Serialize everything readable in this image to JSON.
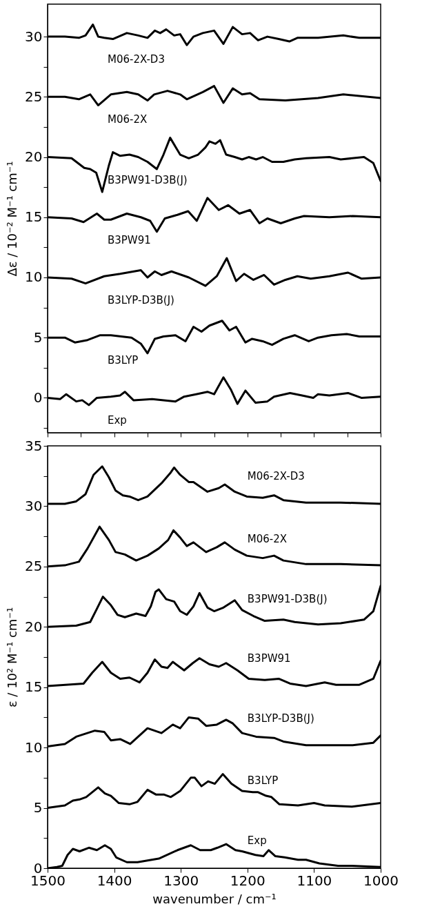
{
  "chart_data": [
    {
      "type": "line",
      "ylabel": "Δε / 10⁻² M⁻¹ cm⁻¹",
      "xlim": [
        1500,
        1000
      ],
      "ylim": [
        -2.9,
        32.7
      ],
      "xticks": [
        {
          "value": 1500,
          "label": null
        },
        {
          "value": 1450,
          "label": null
        },
        {
          "value": 1400,
          "label": null
        },
        {
          "value": 1350,
          "label": null
        },
        {
          "value": 1300,
          "label": null
        },
        {
          "value": 1250,
          "label": null
        },
        {
          "value": 1200,
          "label": null
        },
        {
          "value": 1150,
          "label": null
        },
        {
          "value": 1100,
          "label": null
        },
        {
          "value": 1050,
          "label": null
        },
        {
          "value": 1000,
          "label": null
        }
      ],
      "yticks": [
        {
          "value": -2.5,
          "label": null
        },
        0,
        {
          "value": 2.5,
          "label": null
        },
        5,
        {
          "value": 7.5,
          "label": null
        },
        10,
        {
          "value": 12.5,
          "label": null
        },
        15,
        {
          "value": 17.5,
          "label": null
        },
        20,
        {
          "value": 22.5,
          "label": null
        },
        25,
        {
          "value": 27.5,
          "label": null
        },
        30
      ],
      "tick_labels": "y",
      "series": [
        {
          "name": "M06-2X-D3",
          "color": "#000000",
          "x": [
            1500,
            1474,
            1453,
            1443,
            1432,
            1424,
            1415,
            1402,
            1381,
            1364,
            1350,
            1339,
            1331,
            1322,
            1310,
            1301,
            1291,
            1281,
            1267,
            1250,
            1236,
            1222,
            1208,
            1196,
            1184,
            1170,
            1153,
            1137,
            1125,
            1094,
            1056,
            1032,
            1000
          ],
          "values": [
            30,
            30,
            29.9,
            30.1,
            31,
            30,
            29.9,
            29.8,
            30.3,
            30.1,
            29.9,
            30.5,
            30.3,
            30.6,
            30.1,
            30.2,
            29.3,
            30,
            30.3,
            30.5,
            29.4,
            30.8,
            30.2,
            30.3,
            29.7,
            30,
            29.8,
            29.6,
            29.9,
            29.9,
            30.1,
            29.9,
            29.9
          ]
        },
        {
          "name": "M06-2X",
          "color": "#000000",
          "x": [
            1500,
            1474,
            1453,
            1436,
            1424,
            1405,
            1381,
            1364,
            1350,
            1340,
            1320,
            1301,
            1291,
            1267,
            1250,
            1236,
            1222,
            1208,
            1196,
            1182,
            1143,
            1094,
            1056,
            1000
          ],
          "values": [
            25,
            25,
            24.8,
            25.2,
            24.3,
            25.2,
            25.4,
            25.2,
            24.7,
            25.2,
            25.5,
            25.2,
            24.8,
            25.4,
            25.9,
            24.5,
            25.7,
            25.2,
            25.3,
            24.8,
            24.7,
            24.9,
            25.2,
            24.9
          ]
        },
        {
          "name": "B3PW91-D3B(J)",
          "color": "#000000",
          "x": [
            1500,
            1464,
            1445,
            1436,
            1427,
            1418,
            1408,
            1402,
            1391,
            1377,
            1364,
            1350,
            1336,
            1326,
            1316,
            1301,
            1288,
            1274,
            1263,
            1257,
            1248,
            1241,
            1232,
            1219,
            1208,
            1198,
            1187,
            1177,
            1163,
            1146,
            1129,
            1112,
            1077,
            1060,
            1025,
            1011,
            1000
          ],
          "values": [
            20,
            19.9,
            19.1,
            19,
            18.7,
            17.1,
            19.3,
            20.4,
            20.1,
            20.2,
            20,
            19.6,
            19,
            20.2,
            21.6,
            20.2,
            19.9,
            20.2,
            20.8,
            21.3,
            21.1,
            21.4,
            20.2,
            20,
            19.8,
            20,
            19.8,
            20,
            19.6,
            19.6,
            19.8,
            19.9,
            20,
            19.8,
            20,
            19.5,
            18
          ]
        },
        {
          "name": "B3PW91",
          "color": "#000000",
          "x": [
            1500,
            1464,
            1446,
            1426,
            1415,
            1405,
            1381,
            1360,
            1346,
            1336,
            1324,
            1305,
            1289,
            1276,
            1260,
            1243,
            1229,
            1212,
            1196,
            1182,
            1170,
            1150,
            1129,
            1115,
            1077,
            1042,
            1000
          ],
          "values": [
            15,
            14.9,
            14.6,
            15.3,
            14.8,
            14.8,
            15.3,
            15,
            14.7,
            13.8,
            14.9,
            15.2,
            15.5,
            14.7,
            16.6,
            15.6,
            16,
            15.3,
            15.6,
            14.5,
            14.9,
            14.5,
            14.9,
            15.1,
            15,
            15.1,
            15
          ]
        },
        {
          "name": "B3LYP-D3B(J)",
          "color": "#000000",
          "x": [
            1500,
            1464,
            1443,
            1415,
            1391,
            1360,
            1350,
            1339,
            1329,
            1314,
            1288,
            1263,
            1246,
            1231,
            1217,
            1205,
            1191,
            1175,
            1160,
            1143,
            1125,
            1105,
            1077,
            1049,
            1029,
            1000
          ],
          "values": [
            10,
            9.9,
            9.5,
            10.1,
            10.3,
            10.6,
            10,
            10.5,
            10.2,
            10.5,
            10,
            9.3,
            10.1,
            11.6,
            9.7,
            10.3,
            9.8,
            10.2,
            9.4,
            9.8,
            10.1,
            9.9,
            10.1,
            10.4,
            9.9,
            10
          ]
        },
        {
          "name": "B3LYP",
          "color": "#000000",
          "x": [
            1500,
            1474,
            1459,
            1440,
            1421,
            1405,
            1374,
            1360,
            1350,
            1339,
            1326,
            1308,
            1293,
            1281,
            1269,
            1257,
            1238,
            1227,
            1217,
            1203,
            1193,
            1177,
            1163,
            1146,
            1129,
            1108,
            1094,
            1074,
            1051,
            1032,
            1000
          ],
          "values": [
            5,
            5,
            4.6,
            4.8,
            5.2,
            5.2,
            5,
            4.5,
            3.7,
            4.9,
            5.1,
            5.2,
            4.7,
            5.9,
            5.5,
            6,
            6.4,
            5.6,
            5.9,
            4.6,
            4.9,
            4.7,
            4.4,
            4.9,
            5.2,
            4.7,
            5,
            5.2,
            5.3,
            5.1,
            5.1
          ]
        },
        {
          "name": "Exp",
          "color": "#000000",
          "x": [
            1500,
            1481,
            1472,
            1457,
            1448,
            1438,
            1426,
            1405,
            1391,
            1384,
            1371,
            1343,
            1308,
            1295,
            1277,
            1260,
            1250,
            1236,
            1225,
            1215,
            1203,
            1188,
            1170,
            1160,
            1136,
            1118,
            1101,
            1094,
            1077,
            1049,
            1029,
            1000
          ],
          "values": [
            0,
            -0.1,
            0.3,
            -0.3,
            -0.2,
            -0.6,
            0,
            0.1,
            0.2,
            0.5,
            -0.2,
            -0.1,
            -0.3,
            0.1,
            0.3,
            0.5,
            0.3,
            1.7,
            0.7,
            -0.5,
            0.6,
            -0.4,
            -0.3,
            0.1,
            0.4,
            0.2,
            0,
            0.3,
            0.2,
            0.4,
            0,
            0.1
          ]
        }
      ]
    },
    {
      "type": "line",
      "xlabel": "wavenumber / cm⁻¹",
      "ylabel": "ε / 10² M⁻¹ cm⁻¹",
      "xlim": [
        1500,
        1000
      ],
      "ylim": [
        0,
        35
      ],
      "xticks": [
        1500,
        1400,
        1300,
        1200,
        1100,
        1000
      ],
      "yticks": [
        0,
        {
          "value": 2.5,
          "label": null
        },
        5,
        {
          "value": 7.5,
          "label": null
        },
        10,
        {
          "value": 12.5,
          "label": null
        },
        15,
        {
          "value": 17.5,
          "label": null
        },
        20,
        {
          "value": 22.5,
          "label": null
        },
        25,
        {
          "value": 27.5,
          "label": null
        },
        30,
        {
          "value": 32.5,
          "label": null
        },
        35
      ],
      "series": [
        {
          "name": "M06-2X-D3",
          "color": "#000000",
          "x": [
            1500,
            1474,
            1457,
            1443,
            1431,
            1418,
            1408,
            1398,
            1387,
            1377,
            1364,
            1350,
            1329,
            1315,
            1310,
            1301,
            1288,
            1281,
            1260,
            1243,
            1234,
            1219,
            1201,
            1177,
            1160,
            1146,
            1112,
            1087,
            1060,
            1000
          ],
          "values": [
            30.2,
            30.2,
            30.4,
            31,
            32.6,
            33.3,
            32.4,
            31.3,
            30.9,
            30.8,
            30.5,
            30.8,
            31.9,
            32.8,
            33.2,
            32.6,
            32,
            32,
            31.2,
            31.5,
            31.8,
            31.2,
            30.8,
            30.7,
            30.9,
            30.5,
            30.3,
            30.3,
            30.3,
            30.2
          ]
        },
        {
          "name": "M06-2X",
          "color": "#000000",
          "x": [
            1500,
            1474,
            1453,
            1440,
            1422,
            1408,
            1398,
            1384,
            1367,
            1350,
            1333,
            1319,
            1311,
            1301,
            1291,
            1281,
            1262,
            1246,
            1234,
            1219,
            1201,
            1177,
            1160,
            1146,
            1112,
            1060,
            1000
          ],
          "values": [
            25,
            25.1,
            25.4,
            26.5,
            28.3,
            27.2,
            26.2,
            26,
            25.5,
            25.9,
            26.5,
            27.2,
            28,
            27.4,
            26.7,
            27,
            26.2,
            26.6,
            27,
            26.4,
            25.9,
            25.7,
            25.9,
            25.5,
            25.2,
            25.2,
            25.1
          ]
        },
        {
          "name": "B3PW91-D3B(J)",
          "color": "#000000",
          "x": [
            1500,
            1457,
            1436,
            1426,
            1417,
            1405,
            1395,
            1384,
            1367,
            1353,
            1345,
            1338,
            1333,
            1322,
            1310,
            1301,
            1291,
            1281,
            1272,
            1260,
            1250,
            1236,
            1219,
            1208,
            1191,
            1174,
            1146,
            1129,
            1094,
            1060,
            1025,
            1011,
            1000
          ],
          "values": [
            20,
            20.1,
            20.4,
            21.5,
            22.5,
            21.8,
            21,
            20.8,
            21.1,
            20.9,
            21.7,
            22.9,
            23.1,
            22.3,
            22.1,
            21.3,
            21,
            21.7,
            22.8,
            21.6,
            21.3,
            21.6,
            22.2,
            21.4,
            20.9,
            20.5,
            20.6,
            20.4,
            20.2,
            20.3,
            20.6,
            21.3,
            23.4
          ]
        },
        {
          "name": "B3PW91",
          "color": "#000000",
          "x": [
            1500,
            1446,
            1433,
            1418,
            1405,
            1391,
            1377,
            1362,
            1350,
            1339,
            1329,
            1320,
            1312,
            1295,
            1282,
            1272,
            1257,
            1243,
            1232,
            1215,
            1198,
            1174,
            1153,
            1136,
            1112,
            1084,
            1067,
            1032,
            1011,
            1000
          ],
          "values": [
            15.1,
            15.3,
            16.2,
            17.1,
            16.2,
            15.7,
            15.8,
            15.4,
            16.2,
            17.3,
            16.7,
            16.6,
            17.1,
            16.4,
            17,
            17.4,
            16.9,
            16.7,
            17,
            16.4,
            15.7,
            15.6,
            15.7,
            15.3,
            15.1,
            15.4,
            15.2,
            15.2,
            15.7,
            17.2
          ]
        },
        {
          "name": "B3LYP-D3B(J)",
          "color": "#000000",
          "x": [
            1500,
            1474,
            1457,
            1429,
            1415,
            1405,
            1391,
            1376,
            1364,
            1350,
            1329,
            1312,
            1301,
            1288,
            1274,
            1262,
            1246,
            1232,
            1222,
            1208,
            1187,
            1160,
            1146,
            1112,
            1077,
            1042,
            1011,
            1000
          ],
          "values": [
            10.1,
            10.3,
            10.9,
            11.4,
            11.3,
            10.6,
            10.7,
            10.3,
            10.9,
            11.6,
            11.2,
            11.9,
            11.6,
            12.5,
            12.4,
            11.8,
            11.9,
            12.3,
            12,
            11.2,
            10.9,
            10.8,
            10.5,
            10.2,
            10.2,
            10.2,
            10.4,
            11
          ]
        },
        {
          "name": "B3LYP",
          "color": "#000000",
          "x": [
            1500,
            1474,
            1462,
            1452,
            1442,
            1424,
            1414,
            1405,
            1393,
            1377,
            1365,
            1350,
            1337,
            1325,
            1315,
            1301,
            1285,
            1279,
            1269,
            1259,
            1249,
            1237,
            1224,
            1208,
            1192,
            1184,
            1172,
            1164,
            1152,
            1124,
            1100,
            1084,
            1043,
            1000
          ],
          "values": [
            5,
            5.2,
            5.6,
            5.7,
            5.9,
            6.7,
            6.2,
            6,
            5.4,
            5.3,
            5.5,
            6.5,
            6.1,
            6.1,
            5.9,
            6.4,
            7.5,
            7.5,
            6.8,
            7.2,
            7,
            7.8,
            7,
            6.4,
            6.3,
            6.3,
            6,
            5.9,
            5.3,
            5.2,
            5.4,
            5.2,
            5.1,
            5.4
          ]
        },
        {
          "name": "Exp",
          "color": "#000000",
          "x": [
            1500,
            1486,
            1478,
            1470,
            1462,
            1452,
            1438,
            1426,
            1414,
            1405,
            1397,
            1381,
            1365,
            1333,
            1305,
            1285,
            1271,
            1255,
            1245,
            1232,
            1218,
            1208,
            1188,
            1176,
            1168,
            1158,
            1144,
            1124,
            1112,
            1092,
            1064,
            1043,
            1000
          ],
          "values": [
            0,
            0.1,
            0.2,
            1.1,
            1.6,
            1.4,
            1.7,
            1.5,
            1.9,
            1.6,
            0.9,
            0.5,
            0.5,
            0.8,
            1.5,
            1.9,
            1.5,
            1.5,
            1.7,
            2,
            1.5,
            1.4,
            1.1,
            1,
            1.5,
            1,
            0.9,
            0.7,
            0.7,
            0.4,
            0.2,
            0.2,
            0.1
          ]
        }
      ]
    }
  ]
}
